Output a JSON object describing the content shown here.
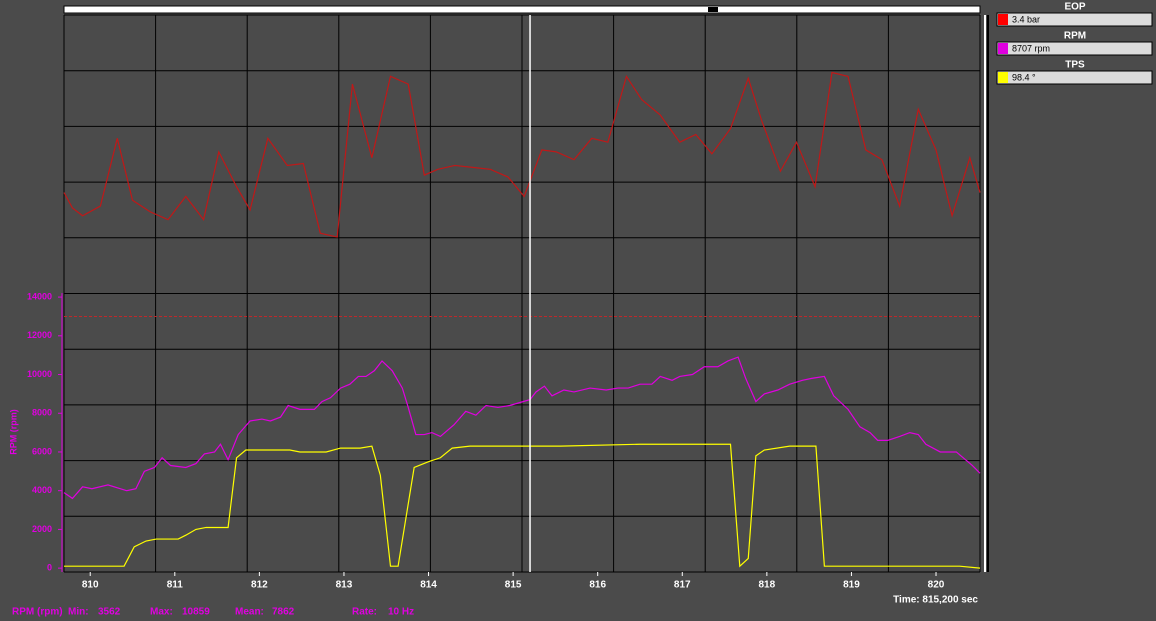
{
  "chart_data": {
    "type": "line",
    "y_label": "RPM (rpm)",
    "xlim": [
      809.69,
      820.52
    ],
    "xticks": [
      810,
      811,
      812,
      813,
      814,
      815,
      816,
      817,
      818,
      819,
      820
    ],
    "ylim": [
      -200,
      28570
    ],
    "yticks": [
      0,
      2000,
      4000,
      6000,
      8000,
      10000,
      12000,
      14000
    ],
    "axis_color": "#e000e0",
    "grid": true,
    "reference_line": {
      "value": 13000,
      "color": "#c0282a"
    },
    "cursor_x": 815.2,
    "cursor_label": "Time: 815,200 sec",
    "series": [
      {
        "name": "EOP",
        "readout": "3.4 bar",
        "color": "#c01818",
        "swatch": "#ff0000",
        "x": [
          809.69,
          809.79,
          809.91,
          810.12,
          810.32,
          810.5,
          810.71,
          810.92,
          811.13,
          811.34,
          811.52,
          811.73,
          811.89,
          812.1,
          812.33,
          812.52,
          812.72,
          812.92,
          813.1,
          813.33,
          813.55,
          813.76,
          813.95,
          814.11,
          814.31,
          814.52,
          814.73,
          814.94,
          815.13,
          815.34,
          815.51,
          815.72,
          815.93,
          816.12,
          816.34,
          816.52,
          816.74,
          816.97,
          817.16,
          817.35,
          817.57,
          817.78,
          817.94,
          818.16,
          818.35,
          818.57,
          818.77,
          818.96,
          819.17,
          819.36,
          819.57,
          819.79,
          820.0,
          820.19,
          820.4,
          820.52
        ],
        "values": [
          19400,
          18600,
          18200,
          18700,
          22200,
          19000,
          18400,
          18000,
          19200,
          18000,
          21500,
          19700,
          18500,
          22200,
          20800,
          20900,
          17300,
          17100,
          25000,
          21200,
          25400,
          25000,
          20300,
          20600,
          20800,
          20700,
          20600,
          20200,
          19200,
          21600,
          21500,
          21100,
          22200,
          22000,
          25400,
          24200,
          23400,
          22000,
          22400,
          21400,
          22700,
          25300,
          23100,
          20500,
          22000,
          19700,
          25600,
          25400,
          21600,
          21100,
          18700,
          23700,
          21600,
          18200,
          21200,
          19400
        ]
      },
      {
        "name": "RPM",
        "readout": "8707 rpm",
        "color": "#e000e0",
        "swatch": "#e000e0",
        "x": [
          809.69,
          809.79,
          809.91,
          810.02,
          810.21,
          810.43,
          810.54,
          810.64,
          810.76,
          810.85,
          810.95,
          811.13,
          811.25,
          811.35,
          811.47,
          811.54,
          811.63,
          811.75,
          811.89,
          812.03,
          812.13,
          812.25,
          812.34,
          812.48,
          812.65,
          812.74,
          812.84,
          812.96,
          813.07,
          813.17,
          813.26,
          813.36,
          813.45,
          813.57,
          813.69,
          813.76,
          813.85,
          813.95,
          814.04,
          814.14,
          814.3,
          814.44,
          814.56,
          814.68,
          814.82,
          814.96,
          815.2,
          815.27,
          815.37,
          815.46,
          815.6,
          815.72,
          815.91,
          816.1,
          816.24,
          816.36,
          816.5,
          816.64,
          816.74,
          816.88,
          816.97,
          817.12,
          817.26,
          817.42,
          817.54,
          817.66,
          817.75,
          817.87,
          817.97,
          818.13,
          818.27,
          818.42,
          818.53,
          818.68,
          818.79,
          818.96,
          819.1,
          819.22,
          819.31,
          819.43,
          819.57,
          819.69,
          819.79,
          819.88,
          820.05,
          820.24,
          820.43,
          820.52
        ],
        "values": [
          3900,
          3600,
          4200,
          4100,
          4300,
          4000,
          4100,
          5000,
          5200,
          5700,
          5300,
          5200,
          5400,
          5900,
          6000,
          6400,
          5600,
          6900,
          7600,
          7700,
          7600,
          7800,
          8400,
          8200,
          8200,
          8600,
          8800,
          9300,
          9500,
          9900,
          9900,
          10200,
          10700,
          10200,
          9300,
          8300,
          6900,
          6900,
          7000,
          6800,
          7400,
          8100,
          7900,
          8400,
          8300,
          8400,
          8707,
          9100,
          9400,
          8900,
          9200,
          9100,
          9300,
          9200,
          9300,
          9300,
          9500,
          9500,
          9900,
          9700,
          9900,
          10000,
          10400,
          10400,
          10700,
          10900,
          9800,
          8600,
          9000,
          9200,
          9500,
          9700,
          9800,
          9900,
          8900,
          8200,
          7300,
          7000,
          6600,
          6600,
          6800,
          7000,
          6900,
          6400,
          6000,
          6000,
          5300,
          4900
        ]
      },
      {
        "name": "TPS",
        "readout": "98.4 °",
        "color": "#ffff00",
        "swatch": "#ffff00",
        "x": [
          809.69,
          810.4,
          810.52,
          810.66,
          810.78,
          811.04,
          811.13,
          811.25,
          811.37,
          811.63,
          811.73,
          811.84,
          812.36,
          812.48,
          812.79,
          812.96,
          813.19,
          813.33,
          813.43,
          813.55,
          813.64,
          813.83,
          814.0,
          814.14,
          814.28,
          814.49,
          815.56,
          816.5,
          817.57,
          817.68,
          817.78,
          817.87,
          817.97,
          818.27,
          818.58,
          818.68,
          819.34,
          819.81,
          820.28,
          820.52
        ],
        "values": [
          100,
          100,
          1100,
          1400,
          1500,
          1500,
          1700,
          2000,
          2100,
          2100,
          5700,
          6100,
          6100,
          6000,
          6000,
          6200,
          6200,
          6300,
          4800,
          100,
          100,
          5200,
          5500,
          5700,
          6200,
          6300,
          6300,
          6400,
          6400,
          100,
          500,
          5800,
          6100,
          6300,
          6300,
          100,
          100,
          100,
          100,
          0
        ]
      }
    ],
    "stats": {
      "channel": "RPM (rpm)",
      "min_label": "Min:",
      "min": 3562,
      "max_label": "Max:",
      "max": 10859,
      "mean_label": "Mean:",
      "mean": 7862,
      "rate_label": "Rate:",
      "rate": "10 Hz"
    }
  }
}
